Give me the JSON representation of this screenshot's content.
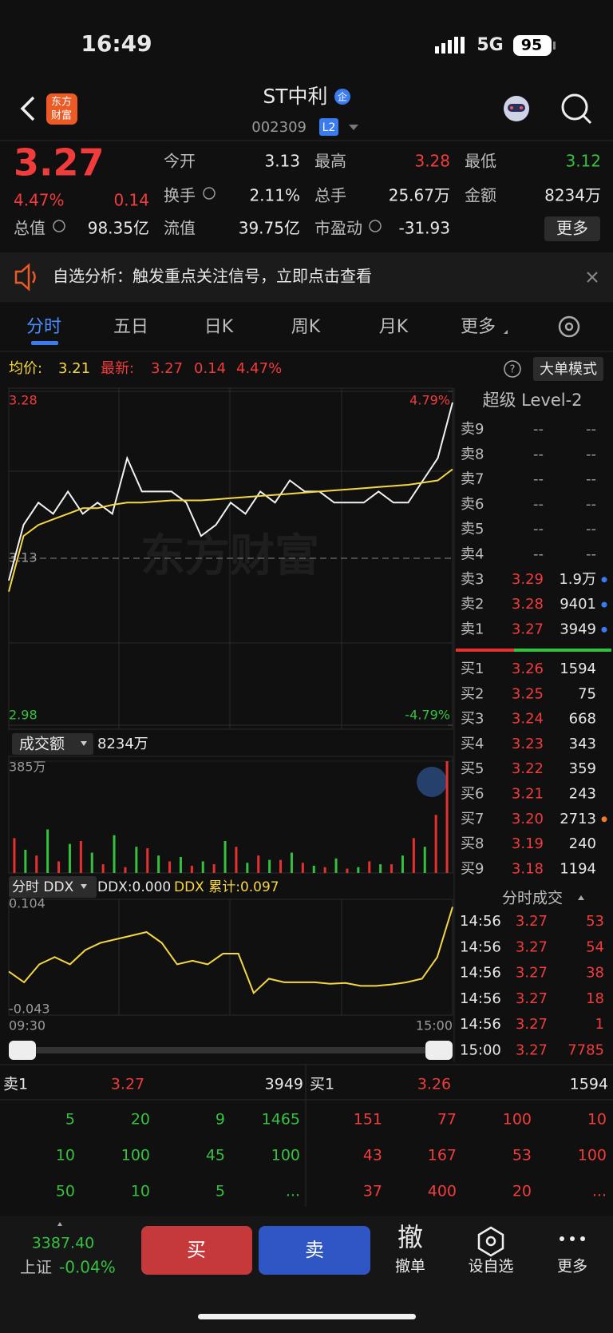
{
  "status_bar": {
    "time": "16:49",
    "network": "5G",
    "battery": "95"
  },
  "header": {
    "logo_lines": [
      "东方",
      "财富"
    ],
    "title": "ST中利",
    "title_badge": "企",
    "code": "002309",
    "level_badge": "L2"
  },
  "quote": {
    "price": "3.27",
    "change_percent": "4.47%",
    "change": "0.14",
    "fields": [
      {
        "label": "今开",
        "value": "3.13"
      },
      {
        "label": "最高",
        "value": "3.28"
      },
      {
        "label": "最低",
        "value": "3.12"
      },
      {
        "label": "换手",
        "value": "2.11%"
      },
      {
        "label": "总手",
        "value": "25.67万"
      },
      {
        "label": "金额",
        "value": "8234万"
      },
      {
        "label": "总值",
        "value": "98.35亿"
      },
      {
        "label": "流值",
        "value": "39.75亿"
      },
      {
        "label": "市盈动",
        "value": "-31.93"
      }
    ],
    "more_button": "更多"
  },
  "notice": {
    "text": "自选分析：触发重点关注信号，立即点击查看"
  },
  "tabs": [
    "分时",
    "五日",
    "日K",
    "周K",
    "月K",
    "更多"
  ],
  "info_bar": {
    "avg_label": "均价:",
    "avg": "3.21",
    "latest_label": "最新:",
    "latest": "3.27",
    "change": "0.14",
    "change_percent": "4.47%",
    "mode_button": "大单模式"
  },
  "chart_data": [
    {
      "type": "line",
      "watermark": "东方财富",
      "ylim": [
        2.98,
        3.28
      ],
      "yticks": [
        2.98,
        3.13,
        3.28
      ],
      "y2lim": [
        -4.79,
        4.79
      ],
      "y2ticks": [
        {
          "value": -4.79,
          "label": "-4.79%"
        },
        {
          "value": 4.79,
          "label": "4.79%"
        }
      ],
      "series": [
        {
          "color": "#f2f2f2",
          "values": [
            3.11,
            3.16,
            3.18,
            3.17,
            3.19,
            3.17,
            3.18,
            3.17,
            3.22,
            3.19,
            3.19,
            3.19,
            3.18,
            3.15,
            3.16,
            3.18,
            3.17,
            3.19,
            3.18,
            3.2,
            3.19,
            3.19,
            3.18,
            3.18,
            3.18,
            3.19,
            3.18,
            3.18,
            3.2,
            3.22,
            3.27
          ]
        },
        {
          "color": "#f5d742",
          "values": [
            3.1,
            3.15,
            3.16,
            3.165,
            3.17,
            3.175,
            3.175,
            3.178,
            3.18,
            3.18,
            3.181,
            3.182,
            3.182,
            3.182,
            3.183,
            3.184,
            3.185,
            3.186,
            3.187,
            3.188,
            3.189,
            3.19,
            3.191,
            3.192,
            3.193,
            3.194,
            3.195,
            3.196,
            3.198,
            3.2,
            3.21
          ]
        }
      ]
    },
    {
      "type": "bar",
      "selector": "成交额",
      "total": "8234万",
      "ylim": [
        0,
        385
      ],
      "yticks": [
        {
          "value": 385,
          "label": "385万"
        }
      ],
      "series": [
        {
          "color": "#e8312f",
          "values": [
            120,
            null,
            60,
            null,
            40,
            null,
            110,
            null,
            30,
            null,
            20,
            null,
            85,
            null,
            40,
            null,
            25,
            null,
            30,
            null,
            90,
            null,
            60,
            null,
            45,
            null,
            35,
            null,
            20,
            null,
            15,
            null,
            40,
            null,
            30,
            null,
            120,
            null,
            200,
            385
          ]
        },
        {
          "color": "#35c13e",
          "values": [
            null,
            80,
            null,
            150,
            null,
            100,
            null,
            70,
            null,
            130,
            null,
            90,
            null,
            60,
            null,
            55,
            null,
            40,
            null,
            110,
            null,
            35,
            null,
            45,
            null,
            70,
            null,
            25,
            null,
            50,
            null,
            20,
            null,
            30,
            null,
            60,
            null,
            90,
            null,
            null
          ]
        }
      ]
    },
    {
      "type": "line",
      "selector": "分时 DDX",
      "ddx_label": "DDX:0.000",
      "ddx_cum_label": "DDX 累计:0.097",
      "ylim": [
        -0.043,
        0.104
      ],
      "yticks": [
        -0.043,
        0.104
      ],
      "x_labels": [
        "09:30",
        "15:00"
      ],
      "series": [
        {
          "color": "#f5d742",
          "values": [
            0.01,
            -0.005,
            0.02,
            0.03,
            0.02,
            0.04,
            0.05,
            0.055,
            0.06,
            0.065,
            0.05,
            0.02,
            0.025,
            0.02,
            0.035,
            0.035,
            -0.02,
            0.0,
            -0.005,
            -0.005,
            -0.005,
            -0.007,
            -0.006,
            -0.01,
            -0.01,
            -0.008,
            -0.005,
            0.0,
            0.03,
            0.1
          ]
        }
      ]
    }
  ],
  "level2": {
    "title": "超级 Level-2",
    "asks": [
      {
        "label": "卖9",
        "price": "--",
        "volume": "--"
      },
      {
        "label": "卖8",
        "price": "--",
        "volume": "--"
      },
      {
        "label": "卖7",
        "price": "--",
        "volume": "--"
      },
      {
        "label": "卖6",
        "price": "--",
        "volume": "--"
      },
      {
        "label": "卖5",
        "price": "--",
        "volume": "--"
      },
      {
        "label": "卖4",
        "price": "--",
        "volume": "--"
      },
      {
        "label": "卖3",
        "price": "3.29",
        "volume": "1.9万"
      },
      {
        "label": "卖2",
        "price": "3.28",
        "volume": "9401"
      },
      {
        "label": "卖1",
        "price": "3.27",
        "volume": "3949"
      }
    ],
    "bids": [
      {
        "label": "买1",
        "price": "3.26",
        "volume": "1594"
      },
      {
        "label": "买2",
        "price": "3.25",
        "volume": "75"
      },
      {
        "label": "买3",
        "price": "3.24",
        "volume": "668"
      },
      {
        "label": "买4",
        "price": "3.23",
        "volume": "343"
      },
      {
        "label": "买5",
        "price": "3.22",
        "volume": "359"
      },
      {
        "label": "买6",
        "price": "3.21",
        "volume": "243"
      },
      {
        "label": "买7",
        "price": "3.20",
        "volume": "2713"
      },
      {
        "label": "买8",
        "price": "3.19",
        "volume": "240"
      },
      {
        "label": "买9",
        "price": "3.18",
        "volume": "1194"
      }
    ]
  },
  "trades": {
    "title": "分时成交",
    "rows": [
      {
        "time": "14:56",
        "price": "3.27",
        "volume": "53"
      },
      {
        "time": "14:56",
        "price": "3.27",
        "volume": "54"
      },
      {
        "time": "14:56",
        "price": "3.27",
        "volume": "38"
      },
      {
        "time": "14:56",
        "price": "3.27",
        "volume": "18"
      },
      {
        "time": "14:56",
        "price": "3.27",
        "volume": "1"
      },
      {
        "time": "15:00",
        "price": "3.27",
        "volume": "7785"
      }
    ]
  },
  "queue": {
    "ask": {
      "label": "卖1",
      "price": "3.27",
      "volume": "3949"
    },
    "bid": {
      "label": "买1",
      "price": "3.26",
      "volume": "1594"
    },
    "ask_orders": [
      "5",
      "20",
      "9",
      "1465",
      "10",
      "100",
      "45",
      "100",
      "50",
      "10",
      "5",
      "..."
    ],
    "bid_orders": [
      "151",
      "77",
      "100",
      "10",
      "43",
      "167",
      "53",
      "100",
      "37",
      "400",
      "20",
      "..."
    ]
  },
  "bottom_bar": {
    "index_value": "3387.40",
    "index_name": "上证",
    "index_change": "-0.04%",
    "buy": "买",
    "sell": "卖",
    "cancel_icon": "撤",
    "cancel": "撤单",
    "watch": "设自选",
    "more": "更多"
  }
}
